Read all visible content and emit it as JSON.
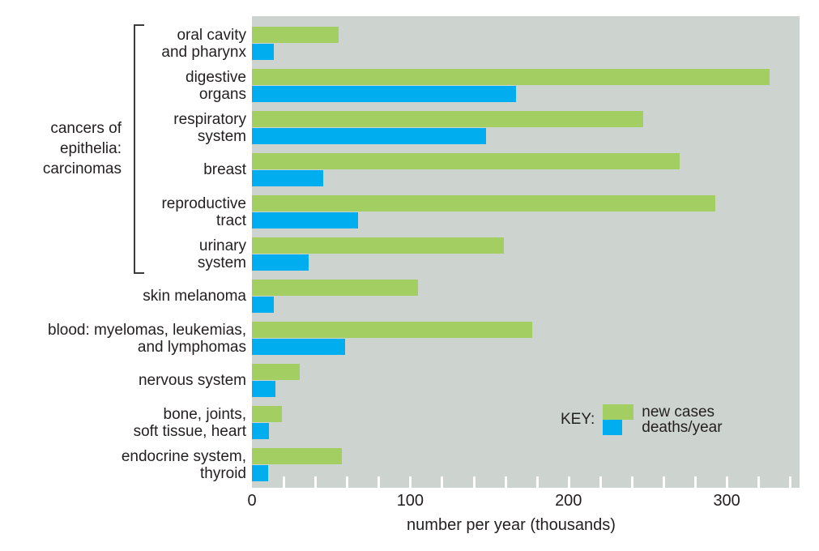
{
  "figure": {
    "background": "#ffffff",
    "text_color": "#231f20",
    "bracket_color": "#3c3c3c"
  },
  "chart_data": {
    "type": "bar",
    "orientation": "horizontal",
    "xlabel": "number per year (thousands)",
    "xlim": [
      0,
      346
    ],
    "x_major_ticks": [
      0,
      100,
      200,
      300
    ],
    "x_minor_tick_step": 20,
    "grid": false,
    "plot_background": "#cdd4cf",
    "tick_color": "#ffffff",
    "group_bracket": {
      "lines": [
        "cancers of",
        "epithelia:",
        "carcinomas"
      ],
      "covers_categories": [
        "oral cavity and pharynx",
        "digestive organs",
        "respiratory system",
        "breast",
        "reproductive tract",
        "urinary system"
      ]
    },
    "categories": [
      {
        "id": "oral-cavity-and-pharynx",
        "label_lines": [
          "oral cavity",
          "and pharynx"
        ]
      },
      {
        "id": "digestive-organs",
        "label_lines": [
          "digestive",
          "organs"
        ]
      },
      {
        "id": "respiratory-system",
        "label_lines": [
          "respiratory",
          "system"
        ]
      },
      {
        "id": "breast",
        "label_lines": [
          "breast"
        ]
      },
      {
        "id": "reproductive-tract",
        "label_lines": [
          "reproductive",
          "tract"
        ]
      },
      {
        "id": "urinary-system",
        "label_lines": [
          "urinary",
          "system"
        ]
      },
      {
        "id": "skin-melanoma",
        "label_lines": [
          "skin melanoma"
        ]
      },
      {
        "id": "blood-myelomas-leukemias-lymphomas",
        "label_lines": [
          "blood: myelomas, leukemias,",
          "and lymphomas"
        ]
      },
      {
        "id": "nervous-system",
        "label_lines": [
          "nervous system"
        ]
      },
      {
        "id": "bone-joints-soft-tissue-heart",
        "label_lines": [
          "bone, joints,",
          "soft tissue, heart"
        ]
      },
      {
        "id": "endocrine-system-thyroid",
        "label_lines": [
          "endocrine system,",
          "thyroid"
        ]
      }
    ],
    "series": [
      {
        "name": "new cases",
        "color": "#a3ce62",
        "values": [
          55,
          327,
          247,
          270,
          293,
          159,
          105,
          177,
          30,
          19,
          57
        ]
      },
      {
        "name": "deaths/year",
        "color": "#00adef",
        "values": [
          14,
          167,
          148,
          45,
          67,
          36,
          14,
          59,
          15,
          11,
          10
        ]
      }
    ],
    "legend": {
      "title": "KEY:",
      "position": "inside-bottom-right"
    }
  }
}
